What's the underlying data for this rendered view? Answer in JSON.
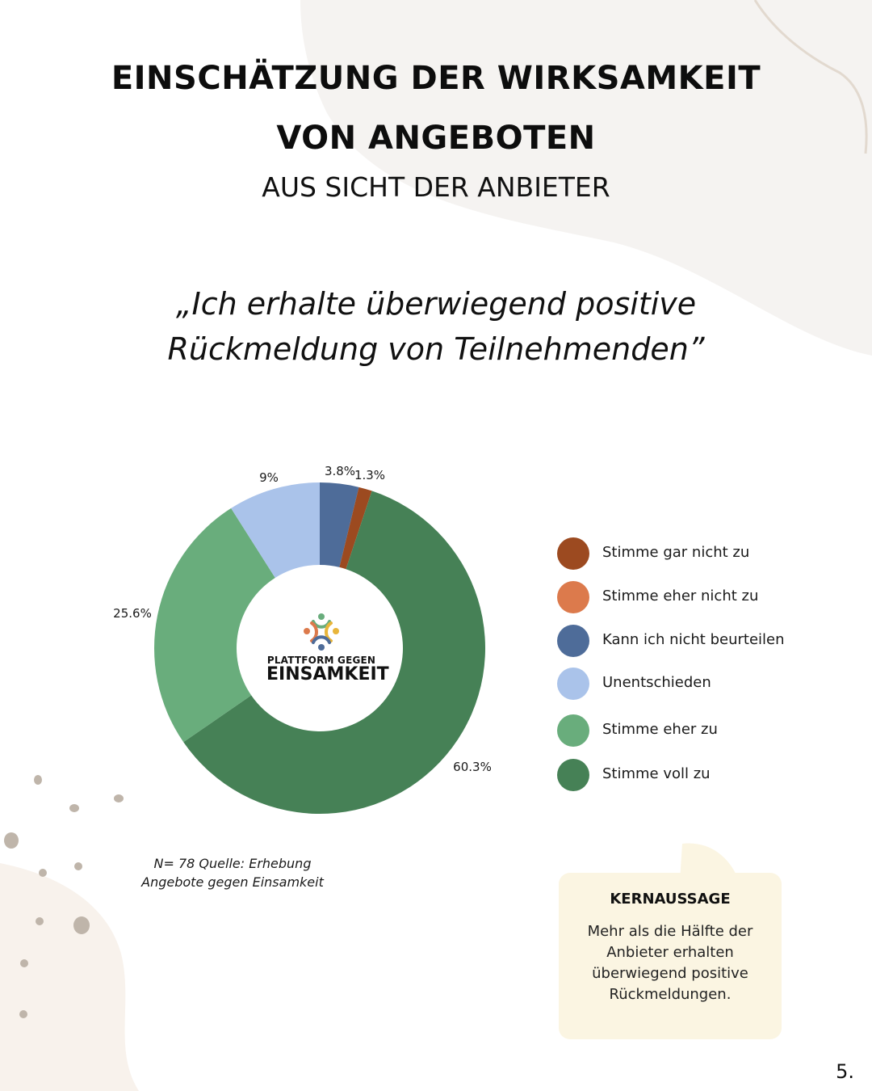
{
  "header": {
    "title_line1": "EINSCHÄTZUNG DER WIRKSAMKEIT",
    "title_line2": "VON ANGEBOTEN",
    "subtitle": "AUS SICHT DER ANBIETER"
  },
  "quote": "„Ich erhalte überwiegend positive Rückmeldung von Teilnehmenden”",
  "chart_data": {
    "type": "pie",
    "donut": true,
    "categories": [
      "Stimme gar nicht zu",
      "Stimme eher nicht zu",
      "Kann ich nicht beurteilen",
      "Unentschieden",
      "Stimme eher zu",
      "Stimme voll zu"
    ],
    "values": [
      1.3,
      0,
      3.8,
      9,
      25.6,
      60.3
    ],
    "data_labels": [
      "1.3%",
      "",
      "3.8%",
      "9%",
      "25.6%",
      "60.3%"
    ],
    "colors": [
      "#9c4a20",
      "#dc7a4c",
      "#4e6c99",
      "#aac3ea",
      "#69ad7c",
      "#468156"
    ],
    "legend_placement": "right"
  },
  "logo": {
    "line1": "PLATTFORM GEGEN",
    "line2": "EINSAMKEIT"
  },
  "source": "N= 78 Quelle: Erhebung Angebote gegen Einsamkeit",
  "callout": {
    "title": "KERNAUSSAGE",
    "text": "Mehr als die Hälfte der Anbieter erhalten überwiegend positive Rückmeldungen."
  },
  "page_number": "5."
}
